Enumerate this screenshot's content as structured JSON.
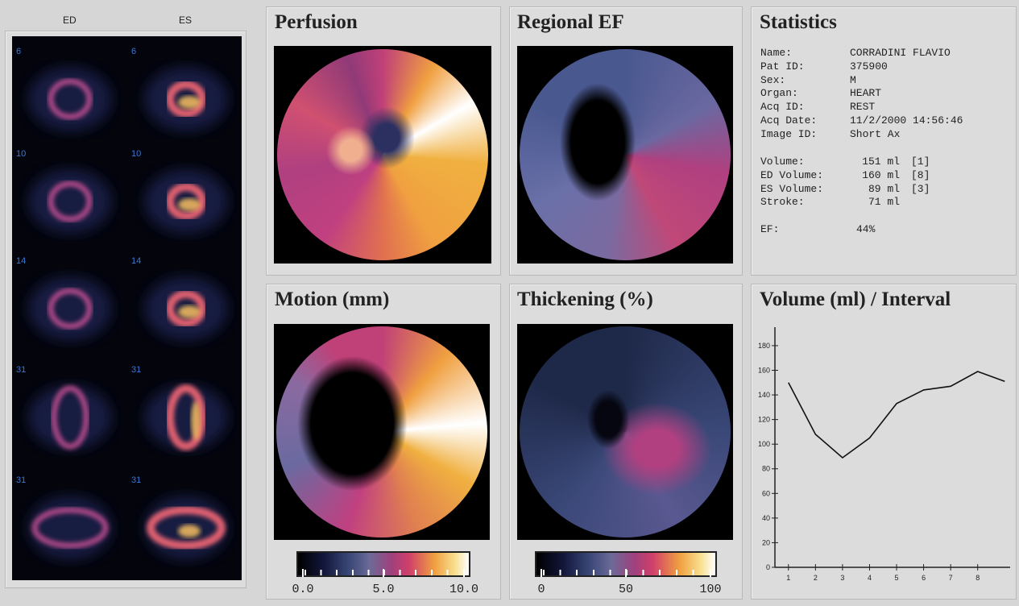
{
  "slices": {
    "headers": [
      "ED",
      "ES"
    ],
    "rows": [
      [
        "6",
        "6"
      ],
      [
        "10",
        "10"
      ],
      [
        "14",
        "14"
      ],
      [
        "31",
        "31"
      ],
      [
        "31",
        "31"
      ]
    ]
  },
  "panels": {
    "perfusion": "Perfusion",
    "regional_ef": "Regional EF",
    "motion": "Motion (mm)",
    "thickening": "Thickening (%)"
  },
  "colorbars": [
    {
      "ticks": [
        {
          "value": 0,
          "label": "0.0"
        },
        {
          "value": 5,
          "label": "5.0"
        },
        {
          "value": 10,
          "label": "10.0"
        }
      ],
      "range": [
        0,
        10
      ]
    },
    {
      "ticks": [
        0,
        50,
        100
      ],
      "range": [
        0,
        100
      ]
    }
  ],
  "statistics": {
    "title": "Statistics",
    "fields": [
      [
        "Name:",
        "CORRADINI FLAVIO"
      ],
      [
        "Pat ID:",
        "375900"
      ],
      [
        "Sex:",
        "M"
      ],
      [
        "Organ:",
        "HEART"
      ],
      [
        "Acq ID:",
        "REST"
      ],
      [
        "Acq Date:",
        "11/2/2000 14:56:46"
      ],
      [
        "Image ID:",
        "Short Ax"
      ]
    ],
    "volumes": [
      [
        "Volume:",
        "151 ml",
        "[1]"
      ],
      [
        "ED Volume:",
        "160 ml",
        "[8]"
      ],
      [
        "ES Volume:",
        "89 ml",
        "[3]"
      ],
      [
        "Stroke:",
        "71 ml",
        ""
      ]
    ],
    "ef": [
      "EF:",
      "44%"
    ]
  },
  "chart_data": {
    "type": "line",
    "title": "Volume (ml) / Interval",
    "x": [
      1,
      2,
      3,
      4,
      5,
      6,
      7,
      8,
      9
    ],
    "series": [
      {
        "color": "#111111",
        "values": [
          150,
          108,
          89,
          105,
          133,
          144,
          147,
          159,
          151
        ]
      }
    ],
    "xlim": [
      0.5,
      9.2
    ],
    "ylim": [
      0,
      195
    ],
    "xticks": [
      1,
      2,
      3,
      4,
      5,
      6,
      7,
      8
    ],
    "yticks": [
      0,
      20,
      40,
      60,
      80,
      100,
      120,
      140,
      160,
      180
    ]
  }
}
